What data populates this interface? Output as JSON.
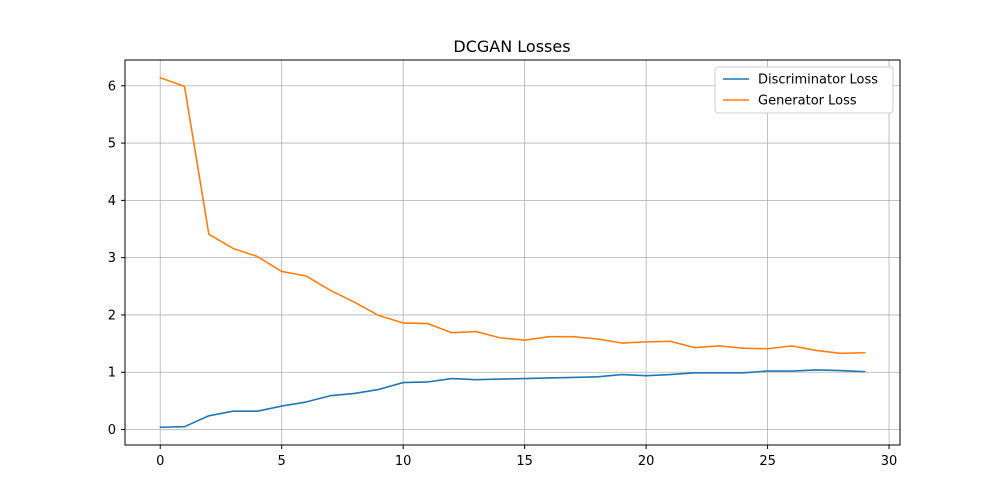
{
  "chart_data": {
    "type": "line",
    "title": "DCGAN Losses",
    "xlabel": "",
    "ylabel": "",
    "xlim": [
      -1.45,
      30.45
    ],
    "ylim": [
      -0.27,
      6.45
    ],
    "xticks": [
      0,
      5,
      10,
      15,
      20,
      25,
      30
    ],
    "yticks": [
      0,
      1,
      2,
      3,
      4,
      5,
      6
    ],
    "grid": true,
    "legend_position": "top-right",
    "x": [
      0,
      1,
      2,
      3,
      4,
      5,
      6,
      7,
      8,
      9,
      10,
      11,
      12,
      13,
      14,
      15,
      16,
      17,
      18,
      19,
      20,
      21,
      22,
      23,
      24,
      25,
      26,
      27,
      28,
      29
    ],
    "series": [
      {
        "name": "Discriminator Loss",
        "color": "#1f77b4",
        "values": [
          0.04,
          0.05,
          0.24,
          0.32,
          0.32,
          0.41,
          0.48,
          0.59,
          0.63,
          0.7,
          0.82,
          0.83,
          0.89,
          0.87,
          0.88,
          0.89,
          0.9,
          0.91,
          0.92,
          0.96,
          0.94,
          0.96,
          0.99,
          0.99,
          0.99,
          1.02,
          1.02,
          1.04,
          1.03,
          1.01
        ]
      },
      {
        "name": "Generator Loss",
        "color": "#ff7f0e",
        "values": [
          6.14,
          5.99,
          3.41,
          3.16,
          3.02,
          2.76,
          2.68,
          2.43,
          2.22,
          1.99,
          1.86,
          1.85,
          1.69,
          1.71,
          1.6,
          1.56,
          1.62,
          1.62,
          1.58,
          1.51,
          1.53,
          1.54,
          1.43,
          1.46,
          1.42,
          1.41,
          1.46,
          1.38,
          1.33,
          1.34
        ]
      }
    ]
  }
}
